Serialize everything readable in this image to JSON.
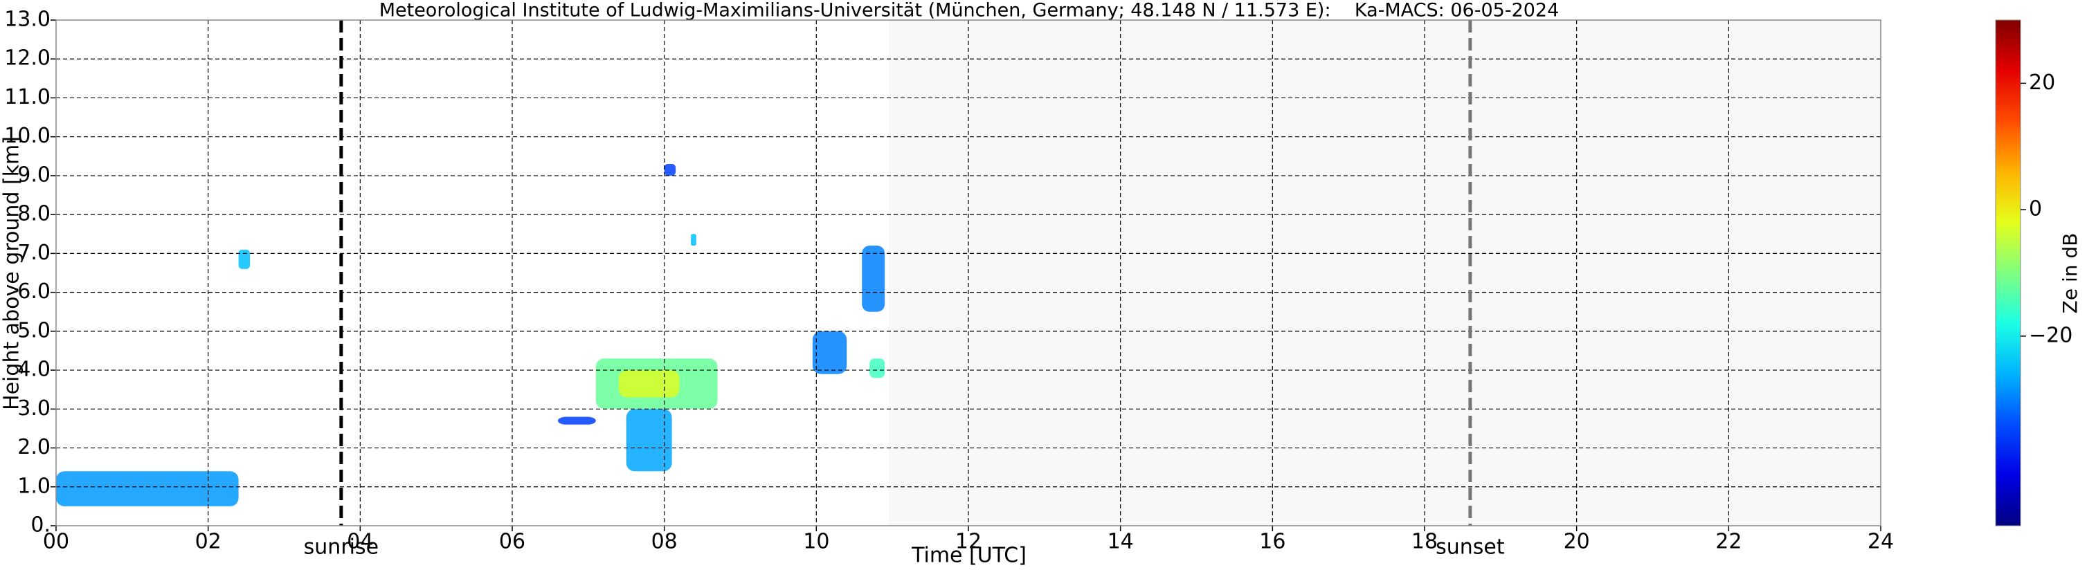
{
  "chart_data": {
    "type": "heatmap",
    "title": "Meteorological Institute of Ludwig-Maximilians-Universität (München, Germany; 48.148 N / 11.573 E):    Ka-MACS: 06-05-2024",
    "xlabel": "Time [UTC]",
    "ylabel": "Height above ground [km]",
    "xlim": [
      0,
      24
    ],
    "ylim": [
      0,
      13
    ],
    "xticks": [
      {
        "value": 0,
        "label": "00"
      },
      {
        "value": 2,
        "label": "02"
      },
      {
        "value": 4,
        "label": "04"
      },
      {
        "value": 6,
        "label": "06"
      },
      {
        "value": 8,
        "label": "08"
      },
      {
        "value": 10,
        "label": "10"
      },
      {
        "value": 12,
        "label": "12"
      },
      {
        "value": 14,
        "label": "14"
      },
      {
        "value": 16,
        "label": "16"
      },
      {
        "value": 18,
        "label": "18"
      },
      {
        "value": 20,
        "label": "20"
      },
      {
        "value": 22,
        "label": "22"
      },
      {
        "value": 24,
        "label": "24"
      }
    ],
    "yticks": [
      {
        "value": 0,
        "label": "0."
      },
      {
        "value": 1,
        "label": "1.0"
      },
      {
        "value": 2,
        "label": "2.0"
      },
      {
        "value": 3,
        "label": "3.0"
      },
      {
        "value": 4,
        "label": "4.0"
      },
      {
        "value": 5,
        "label": "5.0"
      },
      {
        "value": 6,
        "label": "6.0"
      },
      {
        "value": 7,
        "label": "7.0"
      },
      {
        "value": 8,
        "label": "8.0"
      },
      {
        "value": 9,
        "label": "9.0"
      },
      {
        "value": 10,
        "label": "10.0"
      },
      {
        "value": 11,
        "label": "11.0"
      },
      {
        "value": 12,
        "label": "12.0"
      },
      {
        "value": 13,
        "label": "13.0"
      }
    ],
    "grid": true,
    "no_data_start": 10.95,
    "events": [
      {
        "label": "sunrise",
        "x": 3.75,
        "color": "#000000"
      },
      {
        "label": "sunset",
        "x": 18.6,
        "color": "#777777"
      }
    ],
    "echoes": [
      {
        "t": [
          0.0,
          2.4
        ],
        "h": [
          0.5,
          1.4
        ],
        "ze": -28
      },
      {
        "t": [
          2.4,
          2.55
        ],
        "h": [
          6.6,
          7.1
        ],
        "ze": -25
      },
      {
        "t": [
          7.1,
          8.7
        ],
        "h": [
          3.0,
          4.3
        ],
        "ze": -12
      },
      {
        "t": [
          7.4,
          8.2
        ],
        "h": [
          3.3,
          4.0
        ],
        "ze": -3
      },
      {
        "t": [
          7.5,
          8.1
        ],
        "h": [
          1.4,
          3.0
        ],
        "ze": -27
      },
      {
        "t": [
          9.95,
          10.4
        ],
        "h": [
          3.9,
          5.0
        ],
        "ze": -30
      },
      {
        "t": [
          10.7,
          10.9
        ],
        "h": [
          3.8,
          4.3
        ],
        "ze": -15
      },
      {
        "t": [
          10.6,
          10.9
        ],
        "h": [
          5.5,
          7.2
        ],
        "ze": -30
      },
      {
        "t": [
          8.0,
          8.15
        ],
        "h": [
          9.0,
          9.3
        ],
        "ze": -35
      },
      {
        "t": [
          8.35,
          8.42
        ],
        "h": [
          7.2,
          7.5
        ],
        "ze": -25
      },
      {
        "t": [
          6.6,
          7.1
        ],
        "h": [
          2.6,
          2.8
        ],
        "ze": -35
      }
    ],
    "colorbar": {
      "label": "Ze in dB",
      "cmap": "jet",
      "clim": [
        -50,
        30
      ],
      "ticks": [
        {
          "value": -20,
          "label": "−20"
        },
        0,
        20
      ]
    }
  }
}
